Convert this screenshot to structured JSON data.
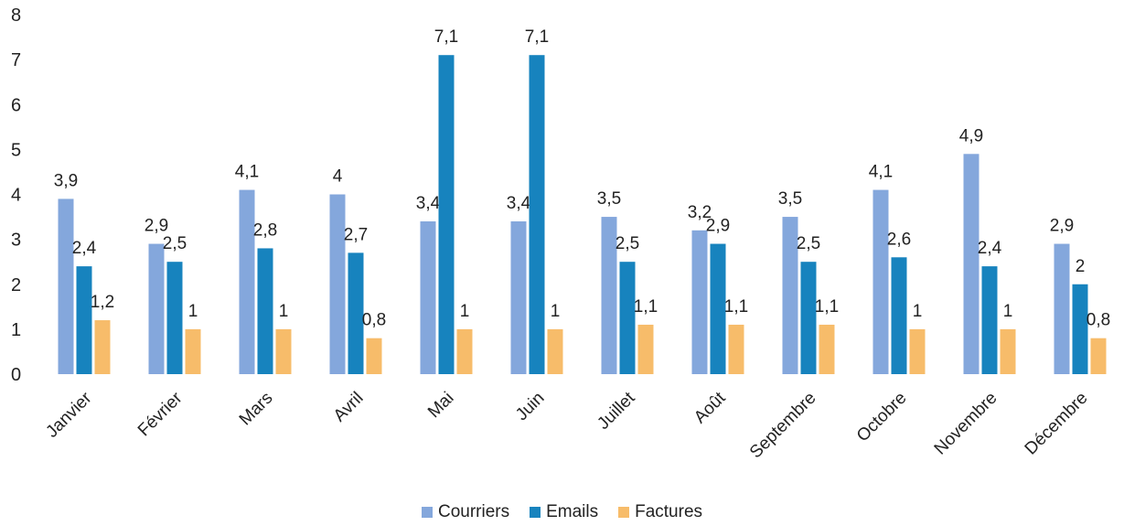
{
  "chart_data": {
    "type": "bar",
    "title": "",
    "xlabel": "",
    "ylabel": "",
    "ylim": [
      0,
      8
    ],
    "yticks": [
      0,
      1,
      2,
      3,
      4,
      5,
      6,
      7,
      8
    ],
    "grid": false,
    "legend_position": "bottom",
    "categories": [
      "Janvier",
      "Février",
      "Mars",
      "Avril",
      "Mai",
      "Juin",
      "Juillet",
      "Août",
      "Septembre",
      "Octobre",
      "Novembre",
      "Décembre"
    ],
    "series": [
      {
        "name": "Courriers",
        "color": "#84A7DC",
        "values": [
          3.9,
          2.9,
          4.1,
          4,
          3.4,
          3.4,
          3.5,
          3.2,
          3.5,
          4.1,
          4.9,
          2.9
        ],
        "labels": [
          "3,9",
          "2,9",
          "4,1",
          "4",
          "3,4",
          "3,4",
          "3,5",
          "3,2",
          "3,5",
          "4,1",
          "4,9",
          "2,9"
        ]
      },
      {
        "name": "Emails",
        "color": "#1783BE",
        "values": [
          2.4,
          2.5,
          2.8,
          2.7,
          7.1,
          7.1,
          2.5,
          2.9,
          2.5,
          2.6,
          2.4,
          2
        ],
        "labels": [
          "2,4",
          "2,5",
          "2,8",
          "2,7",
          "7,1",
          "7,1",
          "2,5",
          "2,9",
          "2,5",
          "2,6",
          "2,4",
          "2"
        ]
      },
      {
        "name": "Factures",
        "color": "#F7BC6A",
        "values": [
          1.2,
          1,
          1,
          0.8,
          1,
          1,
          1.1,
          1.1,
          1.1,
          1,
          1,
          0.8
        ],
        "labels": [
          "1,2",
          "1",
          "1",
          "0,8",
          "1",
          "1",
          "1,1",
          "1,1",
          "1,1",
          "1",
          "1",
          "0,8"
        ]
      }
    ]
  }
}
